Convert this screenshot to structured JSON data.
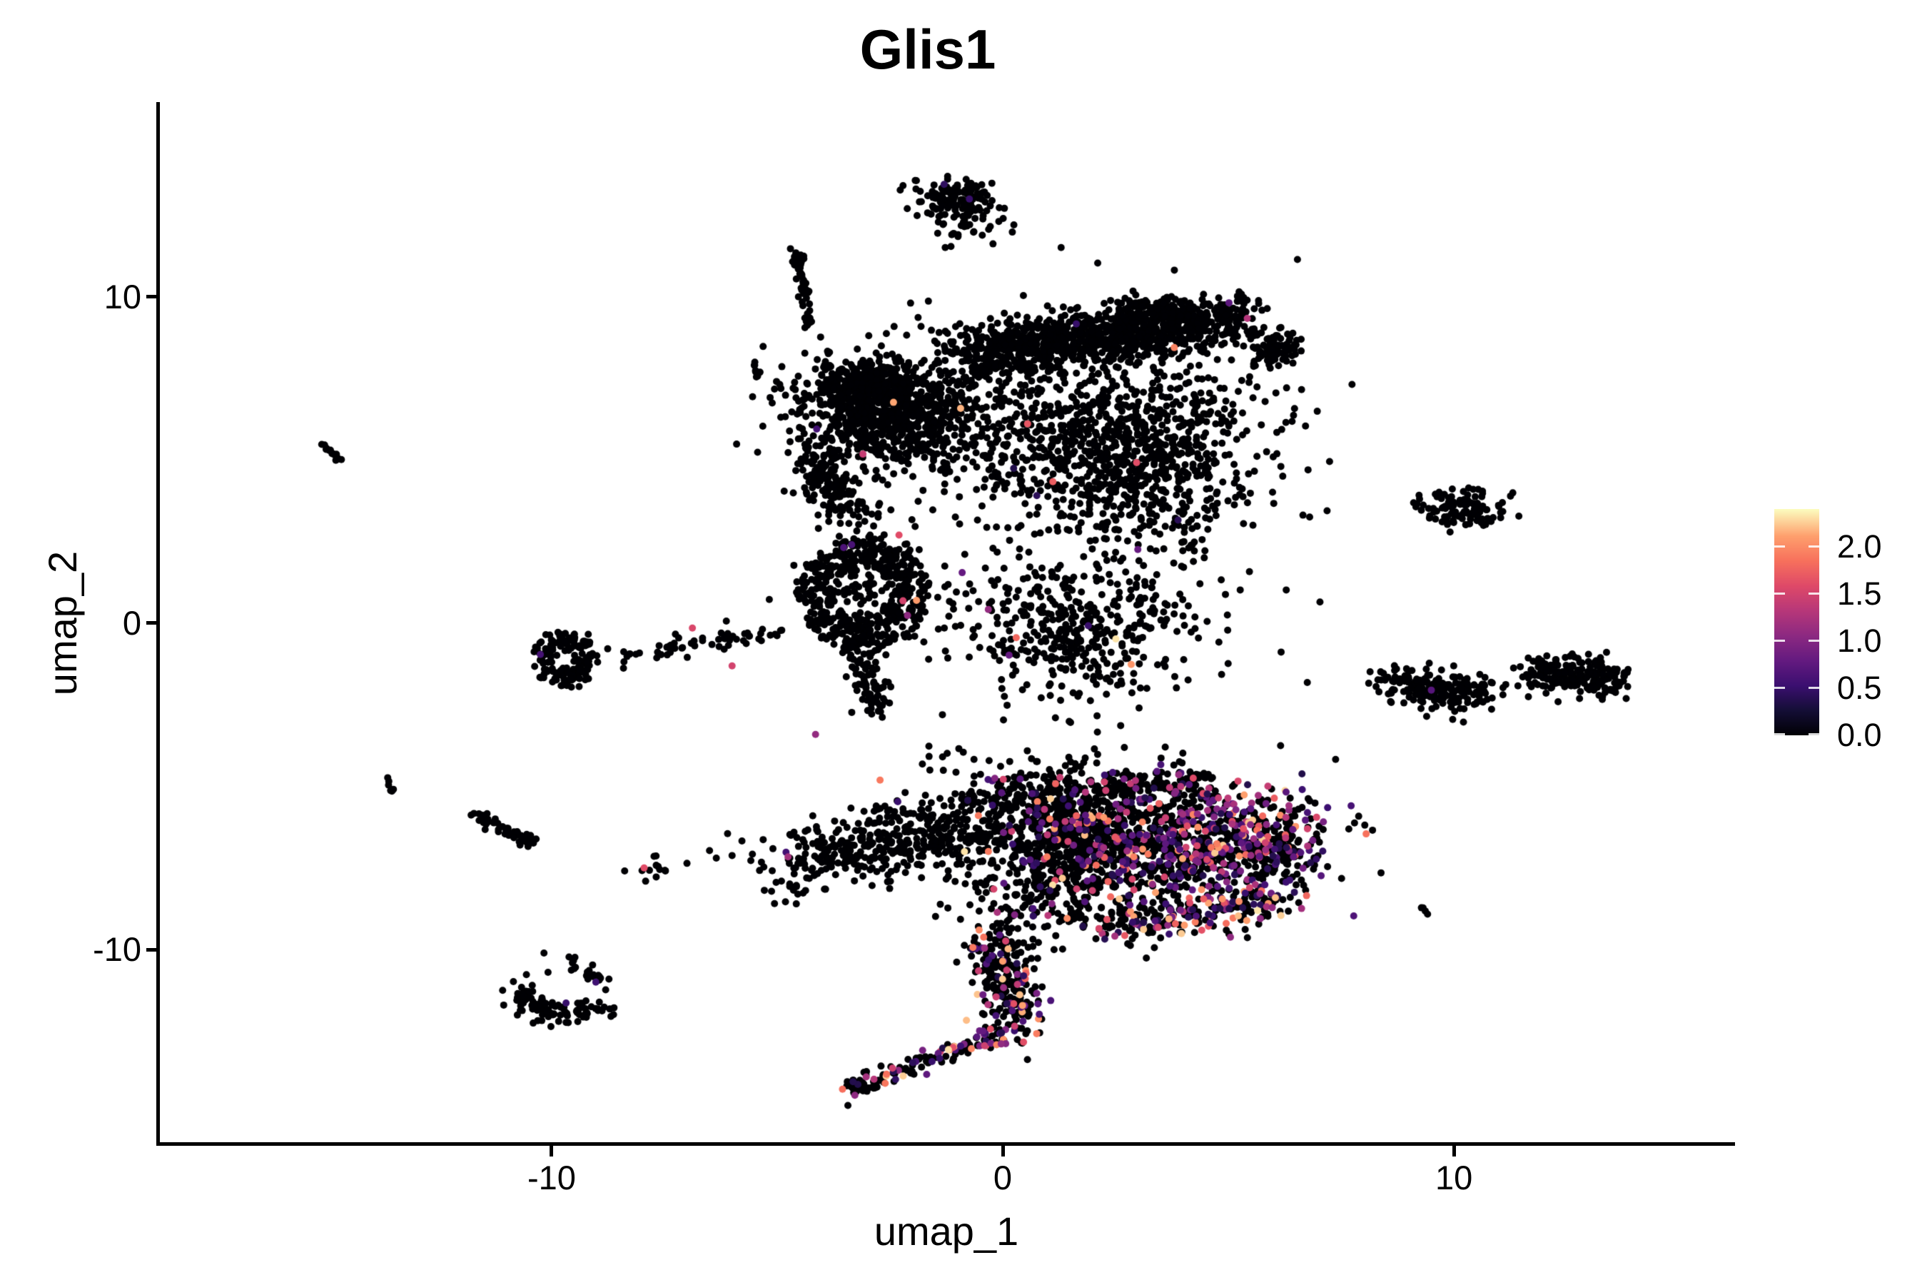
{
  "chart_data": {
    "type": "scatter",
    "title": "Glis1",
    "xlabel": "umap_1",
    "ylabel": "umap_2",
    "xlim": [
      -18.7,
      16.2
    ],
    "ylim": [
      -15.95,
      15.97
    ],
    "grid": false,
    "x_ticks": [
      {
        "v": -10,
        "label": "-10"
      },
      {
        "v": 0,
        "label": "0"
      },
      {
        "v": 10,
        "label": "10"
      }
    ],
    "y_ticks": [
      {
        "v": -10,
        "label": "-10"
      },
      {
        "v": 0,
        "label": "0"
      },
      {
        "v": 10,
        "label": "10"
      }
    ],
    "legend": {
      "position": "right",
      "vmin": 0.0,
      "vmax": 2.4,
      "colormap": "magma",
      "tick_labels": [
        {
          "v": 2.0,
          "label": "2.0"
        },
        {
          "v": 1.5,
          "label": "1.5"
        },
        {
          "v": 1.0,
          "label": "1.0"
        },
        {
          "v": 0.5,
          "label": "0.5"
        },
        {
          "v": 0.0,
          "label": "0.0"
        }
      ],
      "stops": [
        [
          0.0,
          "#000004"
        ],
        [
          0.11,
          "#140e36"
        ],
        [
          0.22,
          "#3b0f70"
        ],
        [
          0.33,
          "#641a80"
        ],
        [
          0.44,
          "#8c2981"
        ],
        [
          0.55,
          "#b73779"
        ],
        [
          0.66,
          "#de4968"
        ],
        [
          0.77,
          "#f7705c"
        ],
        [
          0.88,
          "#fe9f6d"
        ],
        [
          1.0,
          "#fcfdbf"
        ]
      ]
    },
    "point_radius_px": 5,
    "seed": 42,
    "clusters": [
      {
        "kind": "gauss",
        "n": 115,
        "cx": -1.0,
        "cy": 13.05,
        "sx": 0.42,
        "sy": 0.33,
        "cf": 0
      },
      {
        "kind": "gauss",
        "n": 45,
        "cx": -0.85,
        "cy": 12.3,
        "sx": 0.5,
        "sy": 0.36,
        "cf": 0
      },
      {
        "kind": "line",
        "n": 40,
        "x1": -4.55,
        "y1": 11.4,
        "x2": -4.28,
        "y2": 9.05,
        "s": 0.07,
        "cf": 0
      },
      {
        "kind": "gauss",
        "n": 14,
        "cx": -4.5,
        "cy": 11.1,
        "sx": 0.1,
        "sy": 0.2,
        "cf": 0
      },
      {
        "kind": "line",
        "n": 7,
        "x1": -5.48,
        "y1": 8.1,
        "x2": -5.42,
        "y2": 7.5,
        "s": 0.04,
        "cf": 0
      },
      {
        "kind": "line",
        "n": 760,
        "x1": -0.9,
        "y1": 8.5,
        "x2": 5.3,
        "y2": 9.4,
        "s": 0.36,
        "cf": 0.004
      },
      {
        "kind": "line",
        "n": 250,
        "x1": -0.6,
        "y1": 8.0,
        "x2": 4.4,
        "y2": 8.7,
        "s": 0.3,
        "cf": 0
      },
      {
        "kind": "gauss",
        "n": 90,
        "cx": 6.05,
        "cy": 8.45,
        "sx": 0.4,
        "sy": 0.3,
        "cf": 0
      },
      {
        "kind": "line",
        "n": 70,
        "x1": 2.9,
        "y1": 9.75,
        "x2": 4.1,
        "y2": 9.5,
        "s": 0.16,
        "cf": 0
      },
      {
        "kind": "gauss",
        "n": 820,
        "cx": -2.65,
        "cy": 6.5,
        "sx": 0.95,
        "sy": 0.8,
        "cf": 0.003
      },
      {
        "kind": "gauss",
        "n": 240,
        "cx": -3.1,
        "cy": 7.3,
        "sx": 0.55,
        "sy": 0.4,
        "cf": 0
      },
      {
        "kind": "line",
        "n": 170,
        "x1": -4.25,
        "y1": 5.1,
        "x2": -3.4,
        "y2": 3.3,
        "s": 0.28,
        "cf": 0
      },
      {
        "kind": "ring",
        "n": 500,
        "cx": -3.1,
        "cy": 0.9,
        "rx": 1.45,
        "ry": 1.8,
        "w": 0.55,
        "cf": 0.004
      },
      {
        "kind": "gauss",
        "n": 65,
        "cx": -3.1,
        "cy": 0.9,
        "sx": 0.5,
        "sy": 0.6,
        "cf": 0
      },
      {
        "kind": "line",
        "n": 85,
        "x1": -3.25,
        "y1": -0.8,
        "x2": -2.75,
        "y2": -2.6,
        "s": 0.2,
        "cf": 0
      },
      {
        "kind": "gauss",
        "n": 370,
        "cx": 0.6,
        "cy": 5.9,
        "sx": 1.5,
        "sy": 1.3,
        "cf": 0.005
      },
      {
        "kind": "gauss",
        "n": 760,
        "cx": 3.1,
        "cy": 5.3,
        "sx": 1.3,
        "sy": 1.5,
        "cf": 0.004
      },
      {
        "kind": "gauss",
        "n": 410,
        "cx": 1.5,
        "cy": -0.2,
        "sx": 1.35,
        "sy": 1.15,
        "cf": 0.005
      },
      {
        "kind": "gauss",
        "n": 220,
        "cx": 0.7,
        "cy": 4.2,
        "sx": 2.7,
        "sy": 2.7,
        "cf": 0.01
      },
      {
        "kind": "ring",
        "n": 160,
        "cx": -9.72,
        "cy": -1.1,
        "rx": 0.72,
        "ry": 0.85,
        "w": 0.6,
        "cf": 0
      },
      {
        "kind": "line",
        "n": 60,
        "x1": -8.9,
        "y1": -1.15,
        "x2": -4.95,
        "y2": -0.25,
        "s": 0.16,
        "cf": 0
      },
      {
        "kind": "line",
        "n": 14,
        "x1": -15.05,
        "y1": 5.42,
        "x2": -14.68,
        "y2": 4.97,
        "s": 0.05,
        "cf": 0
      },
      {
        "kind": "line",
        "n": 6,
        "x1": -13.7,
        "y1": -4.78,
        "x2": -13.47,
        "y2": -5.2,
        "s": 0.04,
        "cf": 0
      },
      {
        "kind": "line",
        "n": 55,
        "x1": -11.7,
        "y1": -5.85,
        "x2": -10.35,
        "y2": -6.8,
        "s": 0.1,
        "cf": 0
      },
      {
        "kind": "gauss",
        "n": 13,
        "cx": -7.78,
        "cy": -7.62,
        "sx": 0.27,
        "sy": 0.2,
        "cf": 0
      },
      {
        "kind": "gauss",
        "n": 14,
        "cx": -4.85,
        "cy": -8.25,
        "sx": 0.3,
        "sy": 0.18,
        "cf": 0
      },
      {
        "kind": "line",
        "n": 58,
        "x1": -10.85,
        "y1": -11.35,
        "x2": -9.9,
        "y2": -12.1,
        "s": 0.22,
        "cf": 0
      },
      {
        "kind": "line",
        "n": 42,
        "x1": -9.9,
        "y1": -12.1,
        "x2": -8.8,
        "y2": -11.75,
        "s": 0.2,
        "cf": 0
      },
      {
        "kind": "line",
        "n": 22,
        "x1": -9.55,
        "y1": -10.35,
        "x2": -8.85,
        "y2": -11.0,
        "s": 0.12,
        "cf": 0
      },
      {
        "kind": "gauss",
        "n": 115,
        "cx": 10.15,
        "cy": 3.5,
        "sx": 0.5,
        "sy": 0.32,
        "cf": 0
      },
      {
        "kind": "line",
        "n": 200,
        "x1": 8.5,
        "y1": -1.7,
        "x2": 10.6,
        "y2": -2.3,
        "s": 0.3,
        "cf": 0.005
      },
      {
        "kind": "line",
        "n": 215,
        "x1": 11.75,
        "y1": -1.5,
        "x2": 13.6,
        "y2": -1.72,
        "s": 0.28,
        "cf": 0
      },
      {
        "kind": "line",
        "n": 4,
        "x1": 9.22,
        "y1": -8.62,
        "x2": 9.44,
        "y2": -8.95,
        "s": 0.03,
        "cf": 0
      },
      {
        "kind": "line",
        "n": 350,
        "x1": -4.6,
        "y1": -7.2,
        "x2": -0.4,
        "y2": -6.5,
        "s": 0.5,
        "cf": 0.02
      },
      {
        "kind": "line",
        "n": 80,
        "x1": -2.9,
        "y1": -5.95,
        "x2": 0.4,
        "y2": -5.3,
        "s": 0.25,
        "cf": 0.02
      },
      {
        "kind": "gauss",
        "n": 640,
        "cx": 1.5,
        "cy": -6.3,
        "sx": 1.15,
        "sy": 0.8,
        "cf": 0.08
      },
      {
        "kind": "gauss",
        "n": 840,
        "cx": 4.1,
        "cy": -6.7,
        "sx": 1.45,
        "sy": 0.95,
        "cf": 0.35
      },
      {
        "kind": "line",
        "n": 185,
        "x1": 0.0,
        "y1": -5.05,
        "x2": 4.6,
        "y2": -4.85,
        "s": 0.22,
        "cf": 0.15
      },
      {
        "kind": "gauss",
        "n": 140,
        "cx": 6.0,
        "cy": -6.8,
        "sx": 0.5,
        "sy": 0.5,
        "cf": 0.3
      },
      {
        "kind": "line",
        "n": 200,
        "x1": 2.2,
        "y1": -9.3,
        "x2": 6.2,
        "y2": -8.5,
        "s": 0.28,
        "cf": 0.4
      },
      {
        "kind": "gauss",
        "n": 235,
        "cx": 1.2,
        "cy": -8.3,
        "sx": 1.05,
        "sy": 0.7,
        "cf": 0.12
      },
      {
        "kind": "line",
        "n": 255,
        "x1": -0.15,
        "y1": -9.5,
        "x2": 0.35,
        "y2": -12.4,
        "s": 0.38,
        "cf": 0.22
      },
      {
        "kind": "line",
        "n": 118,
        "x1": 0.1,
        "y1": -12.5,
        "x2": -3.2,
        "y2": -14.15,
        "s": 0.16,
        "cf": 0.3
      },
      {
        "kind": "gauss",
        "n": 28,
        "cx": -3.25,
        "cy": -14.25,
        "sx": 0.2,
        "sy": 0.16,
        "cf": 0.12
      },
      {
        "kind": "gauss",
        "n": 22,
        "cx": 0.5,
        "cy": -4.1,
        "sx": 1.4,
        "sy": 0.25,
        "cf": 0
      }
    ],
    "singles_black": [
      [
        9.32,
        3.62
      ],
      [
        10.85,
        -1.83
      ],
      [
        11.15,
        -1.88
      ],
      [
        11.42,
        -1.92
      ],
      [
        11.68,
        -1.86
      ],
      [
        -7.0,
        -7.36
      ],
      [
        -6.5,
        -6.97
      ],
      [
        -6.35,
        -7.2
      ],
      [
        -6.0,
        -7.12
      ],
      [
        -5.55,
        -7.08
      ],
      [
        -10.17,
        -10.11
      ],
      [
        -10.08,
        -10.7
      ],
      [
        -10.43,
        -11.1
      ],
      [
        -6.1,
        -6.45
      ],
      [
        -2.0,
        -13.55
      ],
      [
        -1.6,
        -13.3
      ]
    ],
    "singles_colored": [
      [
        5.42,
        9.34,
        1.3
      ],
      [
        1.63,
        9.17,
        0.5
      ],
      [
        -1.3,
        13.45,
        0.45
      ],
      [
        -0.74,
        13.0,
        0.5
      ],
      [
        -10.25,
        -0.96,
        0.6
      ],
      [
        -6.88,
        -0.15,
        1.55
      ],
      [
        -2.3,
        2.7,
        1.6
      ],
      [
        -0.32,
        0.42,
        1.1
      ],
      [
        -0.9,
        1.55,
        0.8
      ],
      [
        -7.95,
        -7.5,
        1.6
      ],
      [
        -4.76,
        -7.16,
        1.2
      ],
      [
        -9.02,
        -11.0,
        0.55
      ],
      [
        -9.68,
        -11.64,
        0.5
      ],
      [
        9.5,
        -2.05,
        0.7
      ],
      [
        -6.0,
        -1.31,
        1.5
      ],
      [
        -2.72,
        -4.81,
        1.9
      ],
      [
        0.14,
        -0.98,
        0.8
      ],
      [
        -4.15,
        -3.41,
        1.1
      ]
    ]
  }
}
